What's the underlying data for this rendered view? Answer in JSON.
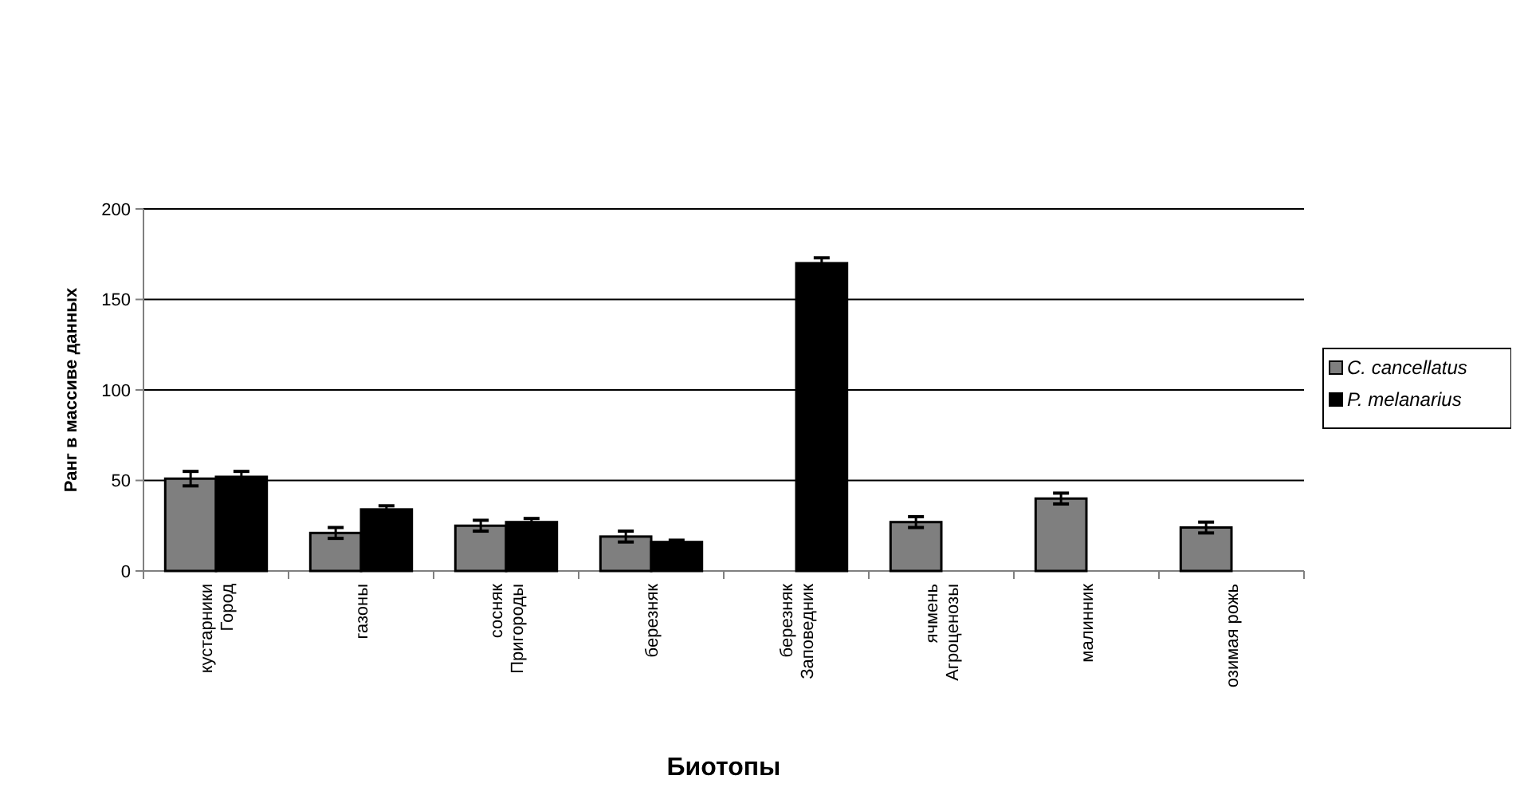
{
  "chart_data": {
    "type": "bar",
    "xlabel": "Биотопы",
    "ylabel": "Ранг в массиве данных",
    "categories": [
      "кустарники\nГород",
      "газоны",
      "сосняк\nПригороды",
      "березняк",
      "березняк\nЗаповедник",
      "ячмень\nАгроценозы",
      "малинник",
      "озимая рожь"
    ],
    "series": [
      {
        "name": "C. cancellatus",
        "color": "#7f7f7f",
        "values": [
          51,
          21,
          25,
          19,
          null,
          27,
          40,
          24
        ],
        "errors": [
          4,
          3,
          3,
          3,
          null,
          3,
          3,
          3
        ]
      },
      {
        "name": "P. melanarius",
        "color": "#000000",
        "values": [
          52,
          34,
          27,
          16,
          170,
          null,
          null,
          null
        ],
        "errors": [
          3,
          2,
          2,
          1,
          3,
          null,
          null,
          null
        ]
      }
    ],
    "ylim": [
      0,
      200
    ],
    "yticks": [
      0,
      50,
      100,
      150,
      200
    ],
    "grid": "y",
    "legend": "right"
  }
}
